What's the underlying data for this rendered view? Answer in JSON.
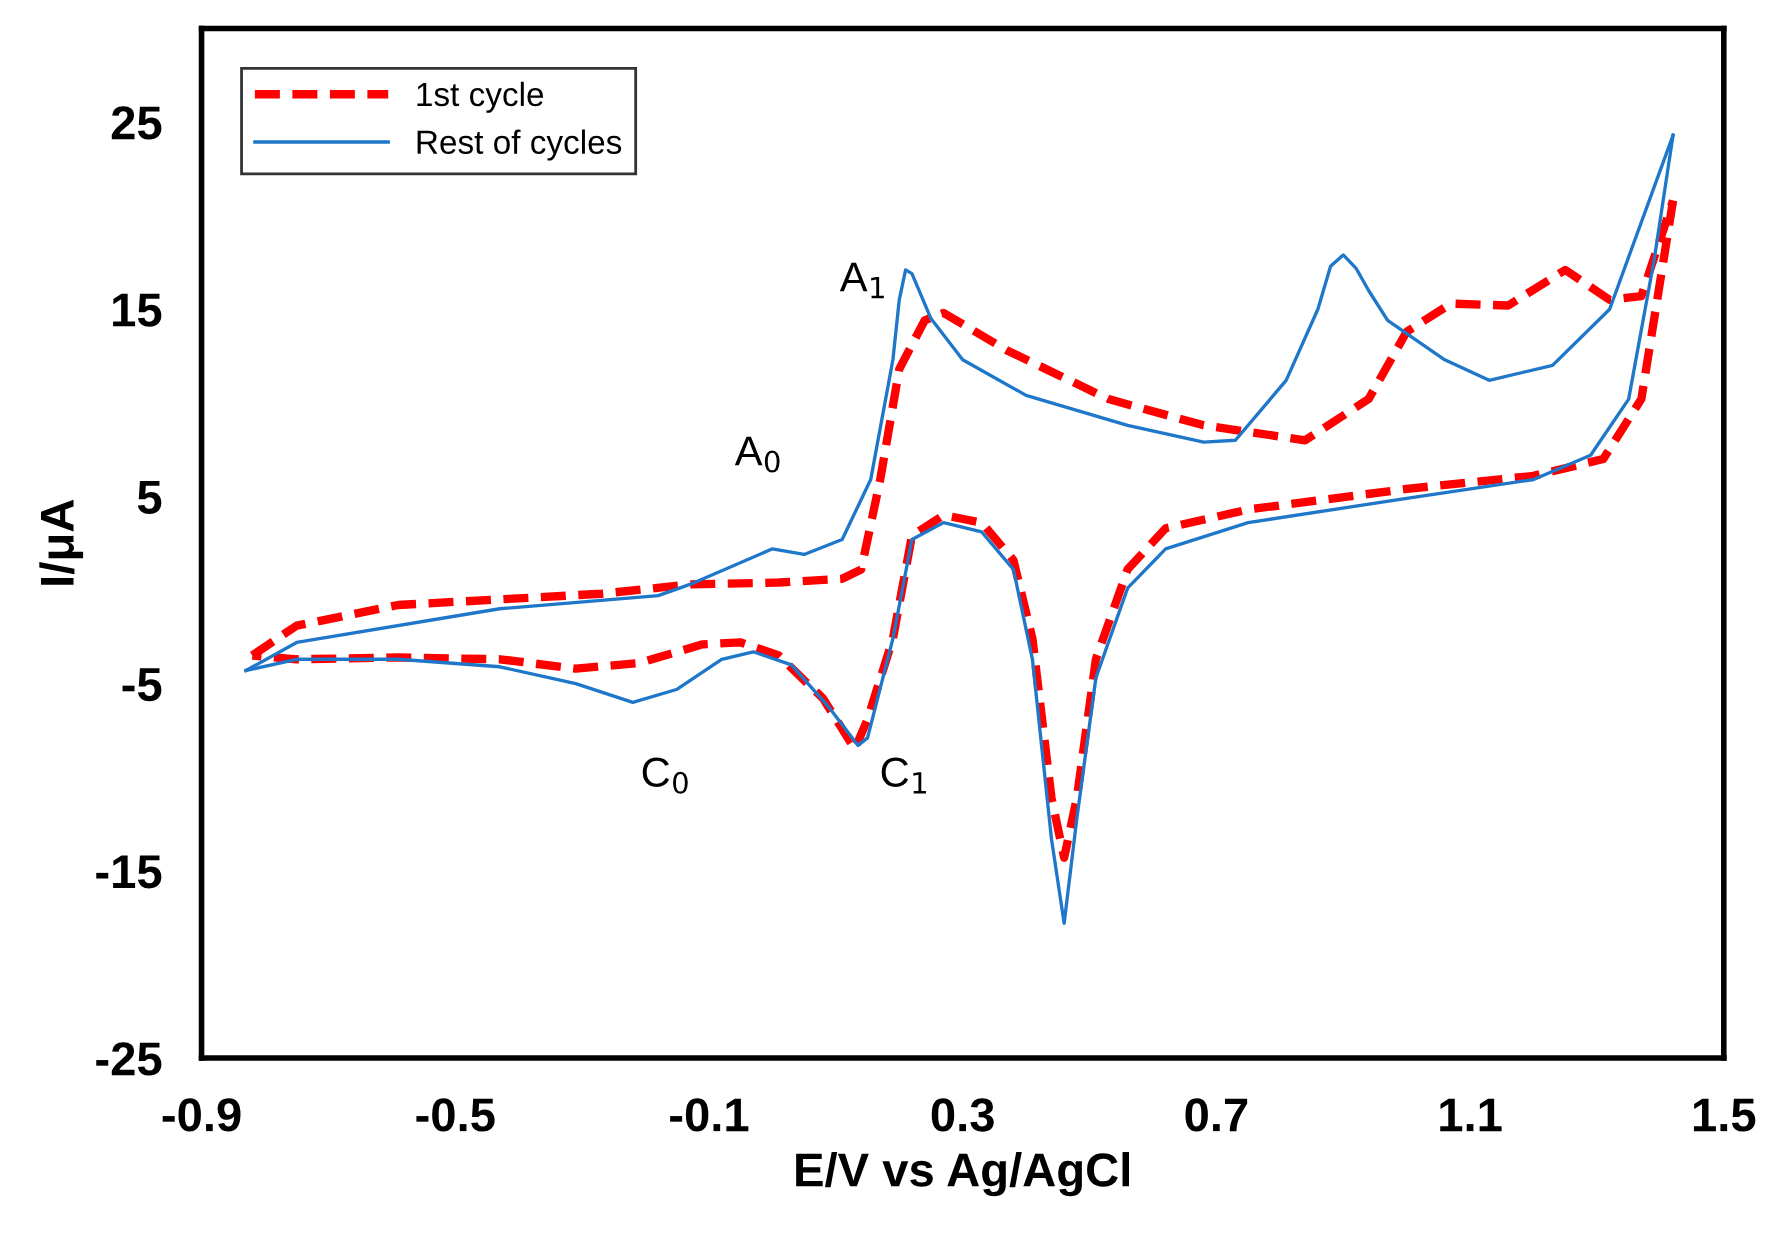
{
  "chart_data": {
    "type": "line",
    "xlabel": "E/V vs Ag/AgCl",
    "ylabel": "I/μA",
    "xlim": [
      -0.9,
      1.5
    ],
    "xticks": [
      -0.9,
      -0.5,
      -0.1,
      0.3,
      0.7,
      1.1,
      1.5
    ],
    "ylim": [
      -25,
      30
    ],
    "yticks": [
      -25,
      -15,
      -5,
      5,
      15,
      25
    ],
    "grid": false,
    "legend": "top left",
    "annotations": [
      "A$_{1}$",
      "A$_{0}$",
      "C$_{0}$",
      "C$_{1}$"
    ],
    "series": [
      {
        "name": "1st cycle",
        "color": "#ff0000",
        "line_style": "dashed",
        "x": [
          -0.82,
          -0.75,
          -0.59,
          -0.27,
          -0.13,
          0.01,
          0.11,
          0.14,
          0.17,
          0.2,
          0.24,
          0.27,
          0.37,
          0.53,
          0.68,
          0.84,
          0.94,
          1.0,
          1.07,
          1.16,
          1.25,
          1.32,
          1.37,
          1.42
        ],
        "values": [
          -3.5,
          -1.9,
          -0.8,
          -0.2,
          0.3,
          0.4,
          0.6,
          1.1,
          5.9,
          11.8,
          14.4,
          14.8,
          12.8,
          10.2,
          8.8,
          8.0,
          10.2,
          13.8,
          15.3,
          15.2,
          17.1,
          15.5,
          15.7,
          20.8
        ]
      },
      {
        "color": "#ff0000",
        "line_style": "dashed",
        "x": [
          1.42,
          1.37,
          1.31,
          1.2,
          1.0,
          0.75,
          0.62,
          0.56,
          0.51,
          0.48,
          0.46,
          0.44,
          0.41,
          0.38,
          0.33,
          0.27,
          0.22,
          0.19,
          0.15,
          0.13,
          0.08,
          0.01,
          -0.05,
          -0.11,
          -0.21,
          -0.31,
          -0.43,
          -0.59,
          -0.75,
          -0.82
        ],
        "values": [
          20.8,
          10.2,
          7.0,
          6.1,
          5.4,
          4.3,
          3.3,
          1.1,
          -3.7,
          -11.1,
          -14.3,
          -11.1,
          -2.6,
          1.6,
          3.6,
          4.0,
          2.9,
          -2.6,
          -6.9,
          -8.5,
          -5.8,
          -3.5,
          -2.8,
          -2.9,
          -3.9,
          -4.2,
          -3.7,
          -3.6,
          -3.7,
          -3.5
        ]
      },
      {
        "name": "Rest of cycles",
        "color": "#1f77c9",
        "line_style": "solid",
        "x": [
          -0.83,
          -0.75,
          -0.43,
          -0.18,
          -0.13,
          0.0,
          0.05,
          0.11,
          0.155,
          0.19,
          0.2,
          0.21,
          0.22,
          0.25,
          0.3,
          0.4,
          0.56,
          0.68,
          0.73,
          0.81,
          0.86,
          0.88,
          0.9,
          0.92,
          0.94,
          0.97,
          1.06,
          1.13,
          1.23,
          1.32,
          1.42
        ],
        "values": [
          -4.3,
          -2.8,
          -1.0,
          -0.3,
          0.3,
          2.2,
          1.9,
          2.7,
          5.9,
          12.3,
          15.5,
          17.1,
          16.9,
          14.5,
          12.3,
          10.4,
          8.8,
          7.9,
          8.0,
          11.2,
          15.0,
          17.3,
          17.9,
          17.2,
          16.0,
          14.4,
          12.3,
          11.2,
          12.0,
          15.0,
          24.3
        ]
      },
      {
        "color": "#1f77c9",
        "line_style": "solid",
        "x": [
          1.42,
          1.39,
          1.35,
          1.29,
          1.2,
          1.0,
          0.75,
          0.62,
          0.56,
          0.51,
          0.48,
          0.46,
          0.44,
          0.41,
          0.38,
          0.33,
          0.27,
          0.22,
          0.19,
          0.15,
          0.135,
          0.09,
          0.03,
          -0.03,
          -0.08,
          -0.15,
          -0.22,
          -0.31,
          -0.43,
          -0.59,
          -0.75,
          -0.83
        ],
        "values": [
          24.3,
          17.6,
          10.2,
          7.2,
          5.9,
          4.9,
          3.6,
          2.2,
          0.1,
          -4.7,
          -12.2,
          -17.8,
          -13.3,
          -3.7,
          1.1,
          3.1,
          3.6,
          2.7,
          -2.6,
          -7.9,
          -8.3,
          -6.3,
          -4.0,
          -3.3,
          -3.7,
          -5.3,
          -6.0,
          -5.0,
          -4.1,
          -3.7,
          -3.7,
          -4.3
        ]
      }
    ]
  }
}
